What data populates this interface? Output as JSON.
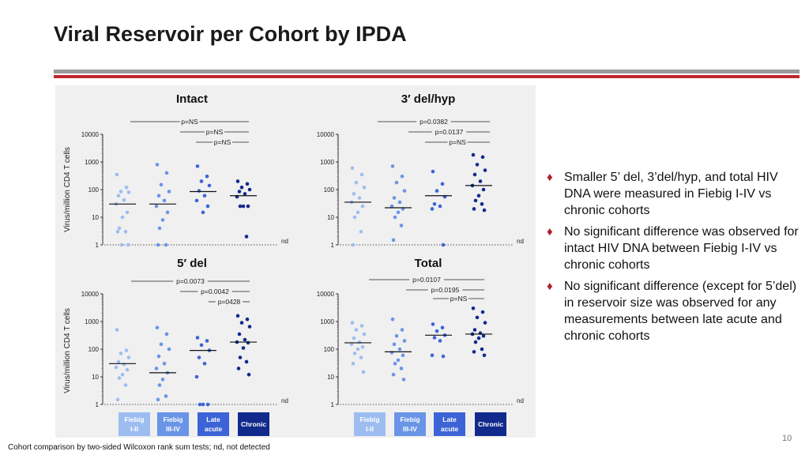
{
  "slide": {
    "title": "Viral Reservoir per Cohort by IPDA",
    "bullets": [
      "Smaller 5’ del, 3’del/hyp, and total HIV DNA were measured in Fiebig I-IV vs chronic cohorts",
      "No significant difference was observed for intact HIV DNA between Fiebig I-IV vs chronic cohorts",
      "No significant difference (except for 5’del) in reservoir size was observed for any measurements between late acute and chronic cohorts"
    ],
    "footer": "Cohort comparison by two-sided Wilcoxon rank sum tests; nd, not detected",
    "page_number": "10"
  },
  "colors": {
    "fiebig_I_II": "#9dbdf0",
    "fiebig_III_IV": "#6a95e6",
    "late_acute": "#3d64d6",
    "chronic": "#122a8c",
    "accent_red": "#c0272d"
  },
  "figure": {
    "y_axis_label": "Virus/million CD4 T cells",
    "y_ticks": [
      "1",
      "10",
      "100",
      "1000",
      "10000"
    ],
    "nd_label": "nd",
    "groups": [
      {
        "label_line1": "Fiebig",
        "label_line2": "I-II"
      },
      {
        "label_line1": "Fiebig",
        "label_line2": "III-IV"
      },
      {
        "label_line1": "Late",
        "label_line2": "acute"
      },
      {
        "label_line1": "Chronic",
        "label_line2": ""
      }
    ]
  },
  "chart_data": [
    {
      "type": "scatter",
      "title": "Intact",
      "categories": [
        "Fiebig I-II",
        "Fiebig III-IV",
        "Late acute",
        "Chronic"
      ],
      "y_scale": "log",
      "ylim": [
        1,
        10000
      ],
      "ylabel": "Virus/million CD4 T cells",
      "medians": [
        30,
        30,
        85,
        60
      ],
      "series": [
        {
          "name": "Fiebig I-II",
          "values": [
            350,
            120,
            85,
            80,
            60,
            42,
            30,
            15,
            10,
            4,
            3,
            3,
            1,
            1
          ]
        },
        {
          "name": "Fiebig III-IV",
          "values": [
            800,
            400,
            150,
            85,
            60,
            40,
            25,
            15,
            8,
            4,
            1,
            1
          ]
        },
        {
          "name": "Late acute",
          "values": [
            700,
            300,
            200,
            140,
            90,
            60,
            40,
            25,
            15
          ]
        },
        {
          "name": "Chronic",
          "values": [
            200,
            160,
            120,
            100,
            85,
            70,
            55,
            25,
            25,
            25,
            2
          ]
        }
      ],
      "comparisons": [
        "p=NS",
        "p=NS",
        "p=NS"
      ]
    },
    {
      "type": "scatter",
      "title": "3′ del/hyp",
      "categories": [
        "Fiebig I-II",
        "Fiebig III-IV",
        "Late acute",
        "Chronic"
      ],
      "y_scale": "log",
      "ylim": [
        1,
        10000
      ],
      "ylabel": "Virus/million CD4 T cells",
      "medians": [
        35,
        22,
        60,
        140
      ],
      "series": [
        {
          "name": "Fiebig I-II",
          "values": [
            600,
            350,
            180,
            120,
            70,
            50,
            35,
            25,
            15,
            10,
            3,
            1
          ]
        },
        {
          "name": "Fiebig III-IV",
          "values": [
            700,
            300,
            180,
            90,
            50,
            35,
            25,
            20,
            15,
            10,
            5,
            1.5
          ]
        },
        {
          "name": "Late acute",
          "values": [
            450,
            160,
            90,
            55,
            30,
            25,
            20,
            1
          ]
        },
        {
          "name": "Chronic",
          "values": [
            1800,
            1500,
            800,
            500,
            350,
            200,
            140,
            100,
            60,
            40,
            30,
            20,
            18
          ]
        }
      ],
      "comparisons": [
        "p=0.0382",
        "p=0.0137",
        "p=NS"
      ]
    },
    {
      "type": "scatter",
      "title": "5′ del",
      "categories": [
        "Fiebig I-II",
        "Fiebig III-IV",
        "Late acute",
        "Chronic"
      ],
      "y_scale": "log",
      "ylim": [
        1,
        10000
      ],
      "ylabel": "Virus/million CD4 T cells",
      "medians": [
        30,
        14,
        90,
        180
      ],
      "series": [
        {
          "name": "Fiebig I-II",
          "values": [
            500,
            90,
            70,
            50,
            35,
            28,
            22,
            18,
            12,
            9,
            5,
            1.5
          ]
        },
        {
          "name": "Fiebig III-IV",
          "values": [
            600,
            350,
            150,
            100,
            55,
            30,
            20,
            14,
            8,
            5,
            2,
            1.5
          ]
        },
        {
          "name": "Late acute",
          "values": [
            260,
            200,
            140,
            90,
            50,
            30,
            10,
            1,
            1,
            1
          ]
        },
        {
          "name": "Chronic",
          "values": [
            1600,
            1200,
            900,
            650,
            350,
            220,
            180,
            170,
            110,
            50,
            35,
            20,
            12
          ]
        }
      ],
      "comparisons": [
        "p=0.0073",
        "p=0.0042",
        "p=0428"
      ]
    },
    {
      "type": "scatter",
      "title": "Total",
      "categories": [
        "Fiebig I-II",
        "Fiebig III-IV",
        "Late acute",
        "Chronic"
      ],
      "y_scale": "log",
      "ylim": [
        1,
        10000
      ],
      "ylabel": "Virus/million CD4 T cells",
      "medians": [
        170,
        80,
        320,
        350
      ],
      "series": [
        {
          "name": "Fiebig I-II",
          "values": [
            900,
            700,
            500,
            350,
            250,
            180,
            150,
            120,
            100,
            70,
            50,
            30,
            15
          ]
        },
        {
          "name": "Fiebig III-IV",
          "values": [
            1200,
            500,
            300,
            200,
            150,
            100,
            75,
            60,
            40,
            30,
            20,
            12,
            8
          ]
        },
        {
          "name": "Late acute",
          "values": [
            800,
            600,
            450,
            320,
            260,
            200,
            60,
            55
          ]
        },
        {
          "name": "Chronic",
          "values": [
            3000,
            2200,
            1400,
            900,
            500,
            380,
            350,
            300,
            250,
            180,
            100,
            80,
            60
          ]
        }
      ],
      "comparisons": [
        "p=0.0107",
        "p=0.0195",
        "p=NS"
      ]
    }
  ]
}
